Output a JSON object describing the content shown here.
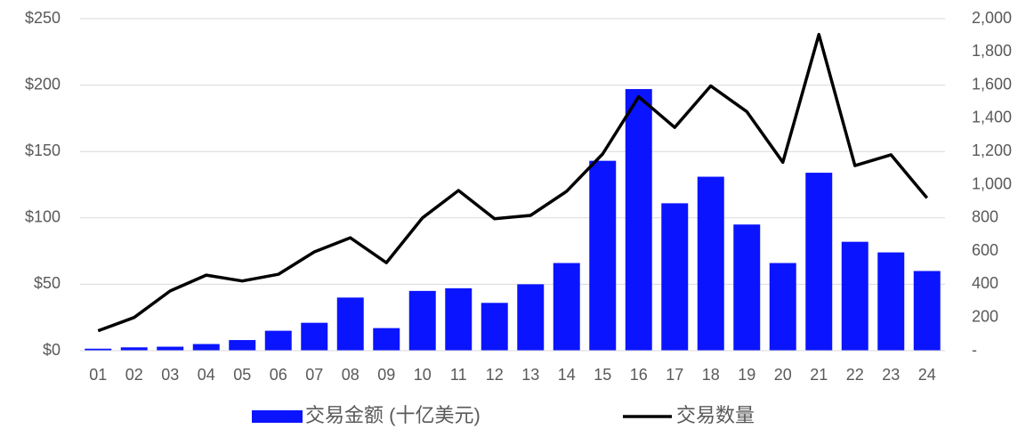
{
  "chart_data": {
    "type": "bar_line",
    "categories": [
      "01",
      "02",
      "03",
      "04",
      "05",
      "06",
      "07",
      "08",
      "09",
      "10",
      "11",
      "12",
      "13",
      "14",
      "15",
      "16",
      "17",
      "18",
      "19",
      "20",
      "21",
      "22",
      "23",
      "24"
    ],
    "series": [
      {
        "name": "交易金额 (十亿美元)",
        "type": "bar",
        "color": "#0a14ff",
        "axis": "y",
        "values": [
          1.5,
          2.5,
          3,
          5,
          8,
          15,
          21,
          40,
          17,
          45,
          47,
          36,
          50,
          66,
          143,
          197,
          111,
          131,
          95,
          66,
          134,
          82,
          74,
          60
        ]
      },
      {
        "name": "交易数量",
        "type": "line",
        "color": "#000000",
        "axis": "y2",
        "values": [
          120,
          200,
          360,
          455,
          420,
          460,
          595,
          680,
          530,
          800,
          965,
          795,
          815,
          960,
          1185,
          1530,
          1345,
          1595,
          1440,
          1135,
          1905,
          1115,
          1180,
          920
        ]
      }
    ],
    "ylim": [
      0,
      250
    ],
    "yticks": [
      {
        "value": 0,
        "label": "$0"
      },
      {
        "value": 50,
        "label": "$50"
      },
      {
        "value": 100,
        "label": "$100"
      },
      {
        "value": 150,
        "label": "$150"
      },
      {
        "value": 200,
        "label": "$200"
      },
      {
        "value": 250,
        "label": "$250"
      }
    ],
    "y2lim": [
      0,
      2000
    ],
    "y2ticks": [
      {
        "value": 0,
        "label": "-"
      },
      200,
      400,
      600,
      800,
      {
        "value": 1000,
        "label": "1,000"
      },
      {
        "value": 1200,
        "label": "1,200"
      },
      {
        "value": 1400,
        "label": "1,400"
      },
      {
        "value": 1600,
        "label": "1,600"
      },
      {
        "value": 1800,
        "label": "1,800"
      },
      {
        "value": 2000,
        "label": "2,000"
      }
    ],
    "grid": true,
    "legend": "bottom"
  }
}
